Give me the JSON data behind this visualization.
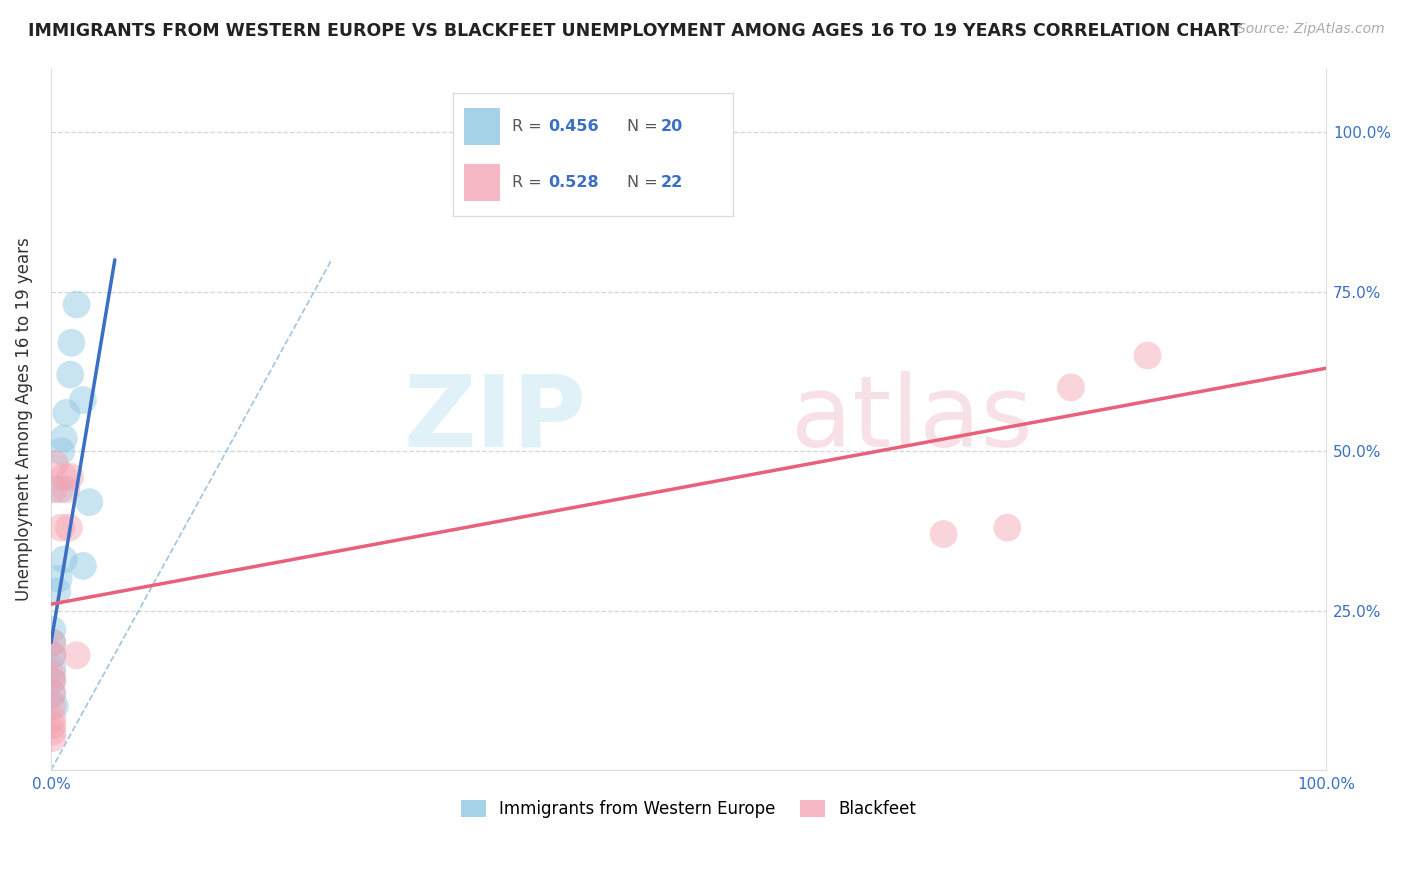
{
  "title": "IMMIGRANTS FROM WESTERN EUROPE VS BLACKFEET UNEMPLOYMENT AMONG AGES 16 TO 19 YEARS CORRELATION CHART",
  "source": "Source: ZipAtlas.com",
  "ylabel": "Unemployment Among Ages 16 to 19 years",
  "xlim": [
    0,
    1.0
  ],
  "ylim": [
    0,
    1.1
  ],
  "background_color": "#ffffff",
  "blue_color": "#89c4e1",
  "pink_color": "#f4a0b0",
  "blue_line_color": "#3a6fc4",
  "pink_line_color": "#e8607a",
  "blue_legend_label": "Immigrants from Western Europe",
  "pink_legend_label": "Blackfeet",
  "R_blue": 0.456,
  "N_blue": 20,
  "R_pink": 0.528,
  "N_pink": 22,
  "blue_scatter_x": [
    0.001,
    0.001,
    0.001,
    0.001,
    0.001,
    0.001,
    0.003,
    0.005,
    0.006,
    0.007,
    0.008,
    0.01,
    0.01,
    0.012,
    0.015,
    0.016,
    0.02,
    0.025,
    0.025,
    0.03
  ],
  "blue_scatter_y": [
    0.22,
    0.2,
    0.18,
    0.16,
    0.14,
    0.12,
    0.1,
    0.28,
    0.3,
    0.44,
    0.5,
    0.52,
    0.33,
    0.56,
    0.62,
    0.67,
    0.73,
    0.58,
    0.32,
    0.42
  ],
  "pink_scatter_x": [
    0.001,
    0.001,
    0.001,
    0.001,
    0.001,
    0.001,
    0.001,
    0.001,
    0.001,
    0.001,
    0.002,
    0.003,
    0.008,
    0.01,
    0.012,
    0.014,
    0.015,
    0.02,
    0.7,
    0.75,
    0.8,
    0.86
  ],
  "pink_scatter_y": [
    0.2,
    0.18,
    0.15,
    0.14,
    0.12,
    0.1,
    0.08,
    0.07,
    0.06,
    0.05,
    0.44,
    0.48,
    0.38,
    0.46,
    0.44,
    0.38,
    0.46,
    0.18,
    0.37,
    0.38,
    0.6,
    0.65
  ],
  "blue_line_x": [
    0.0,
    0.05
  ],
  "blue_line_y": [
    0.2,
    0.8
  ],
  "pink_line_x": [
    0.0,
    1.0
  ],
  "pink_line_y": [
    0.26,
    0.63
  ],
  "diag_line_x": [
    0.0,
    0.22
  ],
  "diag_line_y": [
    0.0,
    0.8
  ],
  "grid_color": "#cccccc",
  "marker_size": 400,
  "marker_alpha": 0.45,
  "line_width": 2.5
}
